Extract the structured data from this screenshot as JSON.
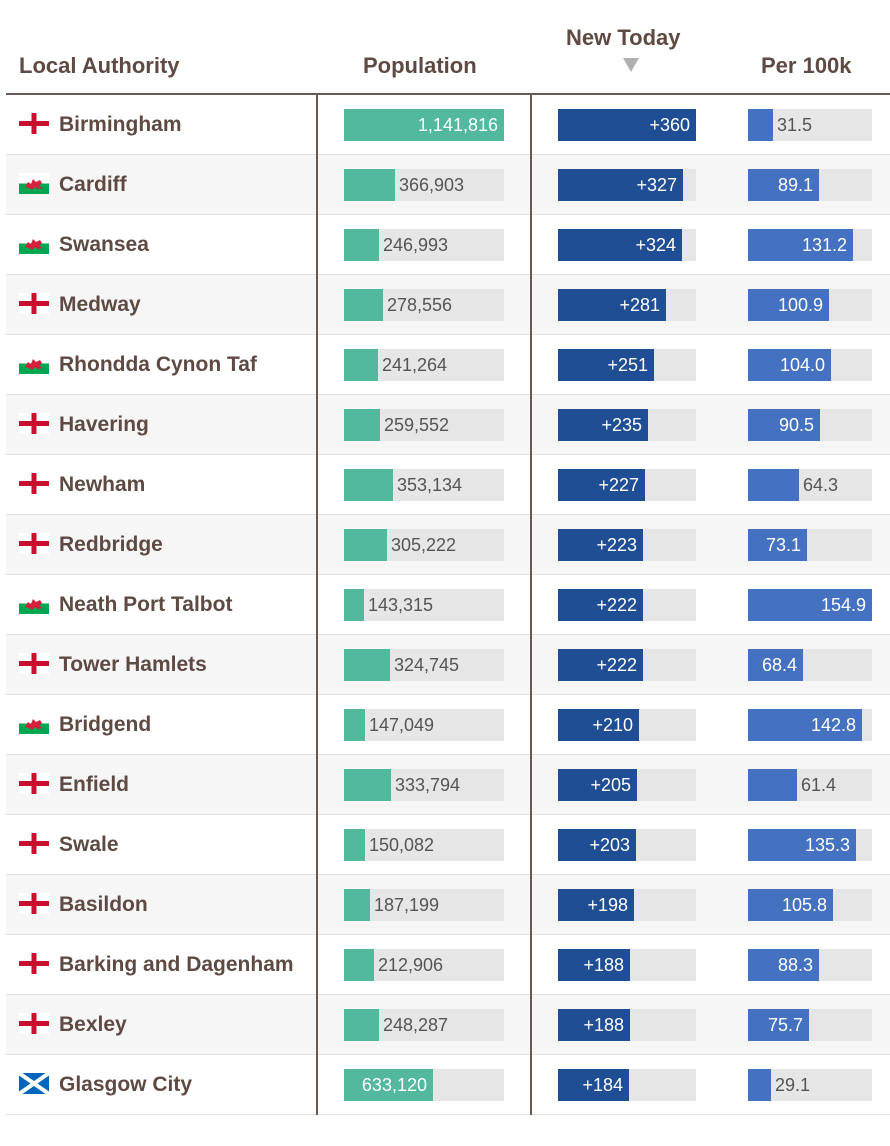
{
  "columns": {
    "authority": "Local Authority",
    "population": "Population",
    "new_today": "New Today",
    "per_100k": "Per 100k"
  },
  "scales": {
    "population_max": 1141816,
    "new_today_max": 360,
    "per_100k_max": 154.9
  },
  "colors": {
    "population_bar": "#52b89e",
    "new_today_bar": "#1f4e95",
    "per_100k_bar": "#4472c0",
    "text": "#5e4a42"
  },
  "rows": [
    {
      "name": "Birmingham",
      "flag": "england-flag-icon",
      "population": 1141816,
      "population_label": "1,141,816",
      "new_today": 360,
      "new_today_label": "+360",
      "per_100k": 31.5,
      "per_100k_label": "31.5"
    },
    {
      "name": "Cardiff",
      "flag": "wales-flag-icon",
      "population": 366903,
      "population_label": "366,903",
      "new_today": 327,
      "new_today_label": "+327",
      "per_100k": 89.1,
      "per_100k_label": "89.1"
    },
    {
      "name": "Swansea",
      "flag": "wales-flag-icon",
      "population": 246993,
      "population_label": "246,993",
      "new_today": 324,
      "new_today_label": "+324",
      "per_100k": 131.2,
      "per_100k_label": "131.2"
    },
    {
      "name": "Medway",
      "flag": "england-flag-icon",
      "population": 278556,
      "population_label": "278,556",
      "new_today": 281,
      "new_today_label": "+281",
      "per_100k": 100.9,
      "per_100k_label": "100.9"
    },
    {
      "name": "Rhondda Cynon Taf",
      "flag": "wales-flag-icon",
      "population": 241264,
      "population_label": "241,264",
      "new_today": 251,
      "new_today_label": "+251",
      "per_100k": 104.0,
      "per_100k_label": "104.0"
    },
    {
      "name": "Havering",
      "flag": "england-flag-icon",
      "population": 259552,
      "population_label": "259,552",
      "new_today": 235,
      "new_today_label": "+235",
      "per_100k": 90.5,
      "per_100k_label": "90.5"
    },
    {
      "name": "Newham",
      "flag": "england-flag-icon",
      "population": 353134,
      "population_label": "353,134",
      "new_today": 227,
      "new_today_label": "+227",
      "per_100k": 64.3,
      "per_100k_label": "64.3"
    },
    {
      "name": "Redbridge",
      "flag": "england-flag-icon",
      "population": 305222,
      "population_label": "305,222",
      "new_today": 223,
      "new_today_label": "+223",
      "per_100k": 73.1,
      "per_100k_label": "73.1"
    },
    {
      "name": "Neath Port Talbot",
      "flag": "wales-flag-icon",
      "population": 143315,
      "population_label": "143,315",
      "new_today": 222,
      "new_today_label": "+222",
      "per_100k": 154.9,
      "per_100k_label": "154.9"
    },
    {
      "name": "Tower Hamlets",
      "flag": "england-flag-icon",
      "population": 324745,
      "population_label": "324,745",
      "new_today": 222,
      "new_today_label": "+222",
      "per_100k": 68.4,
      "per_100k_label": "68.4"
    },
    {
      "name": "Bridgend",
      "flag": "wales-flag-icon",
      "population": 147049,
      "population_label": "147,049",
      "new_today": 210,
      "new_today_label": "+210",
      "per_100k": 142.8,
      "per_100k_label": "142.8"
    },
    {
      "name": "Enfield",
      "flag": "england-flag-icon",
      "population": 333794,
      "population_label": "333,794",
      "new_today": 205,
      "new_today_label": "+205",
      "per_100k": 61.4,
      "per_100k_label": "61.4"
    },
    {
      "name": "Swale",
      "flag": "england-flag-icon",
      "population": 150082,
      "population_label": "150,082",
      "new_today": 203,
      "new_today_label": "+203",
      "per_100k": 135.3,
      "per_100k_label": "135.3"
    },
    {
      "name": "Basildon",
      "flag": "england-flag-icon",
      "population": 187199,
      "population_label": "187,199",
      "new_today": 198,
      "new_today_label": "+198",
      "per_100k": 105.8,
      "per_100k_label": "105.8"
    },
    {
      "name": "Barking and Dagenham",
      "flag": "england-flag-icon",
      "population": 212906,
      "population_label": "212,906",
      "new_today": 188,
      "new_today_label": "+188",
      "per_100k": 88.3,
      "per_100k_label": "88.3"
    },
    {
      "name": "Bexley",
      "flag": "england-flag-icon",
      "population": 248287,
      "population_label": "248,287",
      "new_today": 188,
      "new_today_label": "+188",
      "per_100k": 75.7,
      "per_100k_label": "75.7"
    },
    {
      "name": "Glasgow City",
      "flag": "scotland-flag-icon",
      "population": 633120,
      "population_label": "633,120",
      "new_today": 184,
      "new_today_label": "+184",
      "per_100k": 29.1,
      "per_100k_label": "29.1"
    }
  ]
}
